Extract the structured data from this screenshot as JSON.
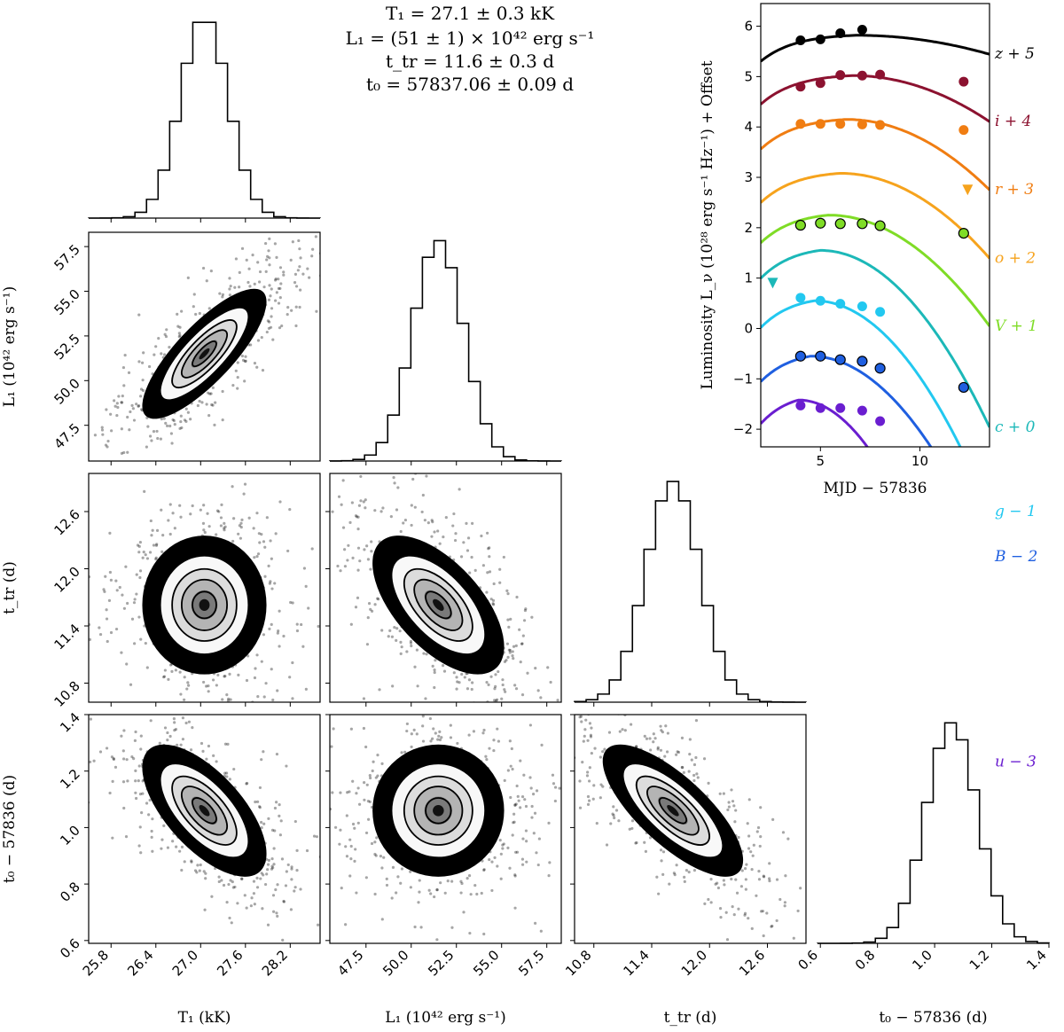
{
  "chart_data": [
    {
      "type": "corner",
      "title_lines": [
        "T₁ = 27.1 ± 0.3 kK",
        "L₁ = (51 ± 1) × 10⁴² erg s⁻¹",
        "t_tr = 11.6 ± 0.3 d",
        "t₀ = 57837.06 ± 0.09 d"
      ],
      "parameters": [
        {
          "name": "T1",
          "label": "T₁ (kK)",
          "mean": 27.05,
          "sigma": 0.32,
          "range": [
            25.5,
            28.6
          ],
          "ticks": [
            "25.8",
            "26.4",
            "27.0",
            "27.6",
            "28.2"
          ],
          "tick_values": [
            25.8,
            26.4,
            27.0,
            27.6,
            28.2
          ]
        },
        {
          "name": "L1",
          "label": "L₁ (10⁴² erg s⁻¹)",
          "mean": 51.5,
          "sigma": 1.4,
          "range": [
            45.5,
            58.3
          ],
          "ticks": [
            "47.5",
            "50.0",
            "52.5",
            "55.0",
            "57.5"
          ],
          "tick_values": [
            47.5,
            50.0,
            52.5,
            55.0,
            57.5
          ]
        },
        {
          "name": "t_tr",
          "label": "t_tr (d)",
          "mean": 11.62,
          "sigma": 0.28,
          "range": [
            10.6,
            13.0
          ],
          "ticks": [
            "10.8",
            "11.4",
            "12.0",
            "12.6"
          ],
          "tick_values": [
            10.8,
            11.4,
            12.0,
            12.6
          ]
        },
        {
          "name": "t0",
          "label": "t₀ − 57836 (d)",
          "mean": 1.06,
          "sigma": 0.09,
          "range": [
            0.59,
            1.4
          ],
          "ticks": [
            "0.6",
            "0.8",
            "1.0",
            "1.2",
            "1.4"
          ],
          "tick_values": [
            0.6,
            0.8,
            1.0,
            1.2,
            1.4
          ]
        }
      ],
      "correlations": [
        {
          "pair": [
            "T1",
            "L1"
          ],
          "rho": 0.8
        },
        {
          "pair": [
            "T1",
            "t_tr"
          ],
          "rho": 0.0
        },
        {
          "pair": [
            "L1",
            "t_tr"
          ],
          "rho": -0.6
        },
        {
          "pair": [
            "T1",
            "t0"
          ],
          "rho": -0.65
        },
        {
          "pair": [
            "L1",
            "t0"
          ],
          "rho": 0.0
        },
        {
          "pair": [
            "t_tr",
            "t0"
          ],
          "rho": -0.75
        }
      ]
    },
    {
      "type": "line",
      "xlabel": "MJD − 57836",
      "ylabel": "Luminosity L_ν (10²⁸ erg s⁻¹ Hz⁻¹) + Offset",
      "xlim": [
        2.0,
        13.5
      ],
      "ylim": [
        -2.35,
        6.45
      ],
      "xticks": [
        5,
        10
      ],
      "yticks": [
        -2,
        -1,
        0,
        1,
        2,
        3,
        4,
        5,
        6
      ],
      "series": [
        {
          "name": "z + 5",
          "color": "#000000",
          "peak_x": 6.8,
          "peak_y": 5.82,
          "rise": 1.6,
          "decay": 0.014,
          "points_x": [
            4.0,
            5.0,
            6.0,
            7.1
          ],
          "points_y": [
            5.72,
            5.74,
            5.86,
            5.93
          ],
          "edge": false
        },
        {
          "name": "i + 4",
          "color": "#8c1230",
          "peak_x": 6.6,
          "peak_y": 5.02,
          "rise": 1.6,
          "decay": 0.032,
          "points_x": [
            4.0,
            5.0,
            6.0,
            7.1,
            8.0,
            12.2
          ],
          "points_y": [
            4.8,
            4.87,
            5.03,
            5.02,
            5.04,
            4.9
          ],
          "edge": false
        },
        {
          "name": "r + 3",
          "color": "#f07d12",
          "peak_x": 6.3,
          "peak_y": 4.15,
          "rise": 1.6,
          "decay": 0.045,
          "points_x": [
            4.0,
            5.0,
            6.0,
            7.1,
            8.0,
            12.2
          ],
          "points_y": [
            4.06,
            4.06,
            4.06,
            4.05,
            4.04,
            3.94
          ],
          "edge": false
        },
        {
          "name": "o + 2",
          "color": "#f6a31d",
          "peak_x": 6.0,
          "peak_y": 3.08,
          "rise": 1.6,
          "decay": 0.05,
          "points_x": [],
          "points_y": [],
          "upper_limits_x": [
            12.4
          ],
          "upper_limits_y": [
            2.75
          ],
          "edge": false
        },
        {
          "name": "V + 1",
          "color": "#7fdc26",
          "peak_x": 5.4,
          "peak_y": 2.25,
          "rise": 1.6,
          "decay": 0.056,
          "points_x": [
            4.0,
            5.0,
            6.0,
            7.1,
            8.0,
            12.2
          ],
          "points_y": [
            2.05,
            2.09,
            2.08,
            2.08,
            2.04,
            1.89
          ],
          "edge": true
        },
        {
          "name": "c + 0",
          "color": "#1cb8b8",
          "peak_x": 5.0,
          "peak_y": 1.55,
          "rise": 1.6,
          "decay": 0.081,
          "points_x": [],
          "points_y": [],
          "upper_limits_x": [
            2.6
          ],
          "upper_limits_y": [
            0.9
          ],
          "edge": false
        },
        {
          "name": "g − 1",
          "color": "#22c8f0",
          "peak_x": 4.7,
          "peak_y": 0.55,
          "rise": 1.6,
          "decay": 0.09,
          "points_x": [
            4.0,
            5.0,
            6.0,
            7.1,
            8.0
          ],
          "points_y": [
            0.61,
            0.55,
            0.49,
            0.44,
            0.33
          ],
          "edge": false
        },
        {
          "name": "B − 2",
          "color": "#1f5fe0",
          "peak_x": 4.5,
          "peak_y": -0.55,
          "rise": 1.6,
          "decay": 0.082,
          "points_x": [
            4.0,
            5.0,
            6.0,
            7.1,
            8.0,
            12.2
          ],
          "points_y": [
            -0.55,
            -0.55,
            -0.62,
            -0.65,
            -0.79,
            -1.17
          ],
          "edge": true
        },
        {
          "name": "u − 3",
          "color": "#6a1ed0",
          "peak_x": 3.9,
          "peak_y": -1.42,
          "rise": 1.6,
          "decay": 0.13,
          "points_x": [
            4.0,
            5.0,
            6.0,
            7.1,
            8.0
          ],
          "points_y": [
            -1.53,
            -1.58,
            -1.58,
            -1.63,
            -1.84
          ],
          "edge": false
        }
      ]
    }
  ]
}
